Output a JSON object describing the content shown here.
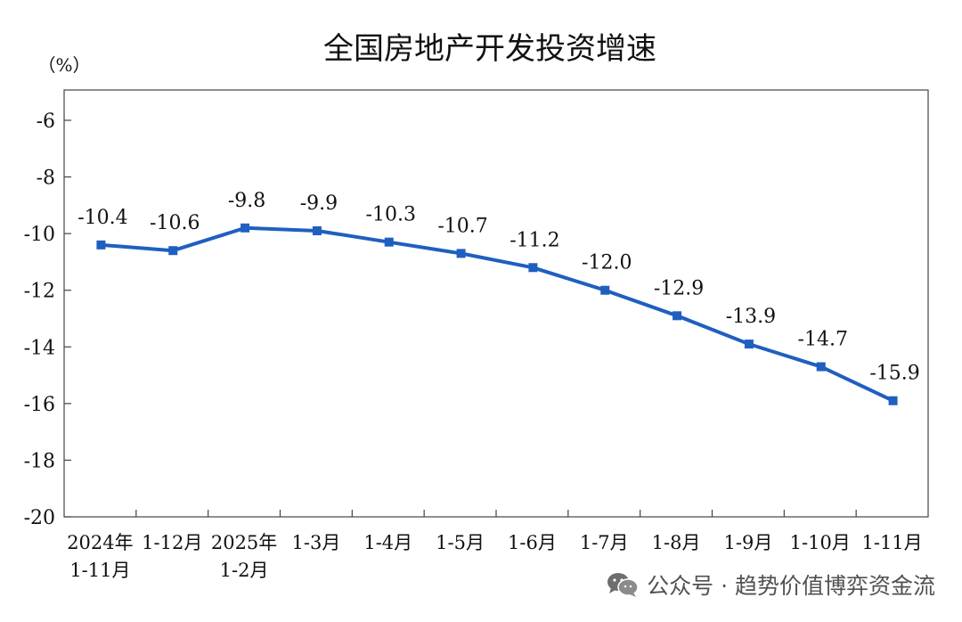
{
  "chart_data": {
    "type": "line",
    "title": "全国房地产开发投资增速",
    "ylabel": "（%）",
    "xlabel": "",
    "ylim": [
      -20,
      -6
    ],
    "yticks": [
      -6,
      -8,
      -10,
      -12,
      -14,
      -16,
      -18,
      -20
    ],
    "grid": false,
    "legend": "none",
    "categories": [
      [
        "2024年",
        "1-11月"
      ],
      [
        "1-12月"
      ],
      [
        "2025年",
        "1-2月"
      ],
      [
        "1-3月"
      ],
      [
        "1-4月"
      ],
      [
        "1-5月"
      ],
      [
        "1-6月"
      ],
      [
        "1-7月"
      ],
      [
        "1-8月"
      ],
      [
        "1-9月"
      ],
      [
        "1-10月"
      ],
      [
        "1-11月"
      ]
    ],
    "series": [
      {
        "values": [
          -10.4,
          -10.6,
          -9.8,
          -9.9,
          -10.3,
          -10.7,
          -11.2,
          -12.0,
          -12.9,
          -13.9,
          -14.7,
          -15.9
        ],
        "labels": [
          "-10.4",
          "-10.6",
          "-9.8",
          "-9.9",
          "-10.3",
          "-10.7",
          "-11.2",
          "-12.0",
          "-12.9",
          "-13.9",
          "-14.7",
          "-15.9"
        ],
        "color": "#1f5fbf"
      }
    ]
  },
  "watermark": {
    "text": "公众号 · 趋势价值博弈资金流",
    "icon": "wechat-icon",
    "color": "#333333"
  }
}
